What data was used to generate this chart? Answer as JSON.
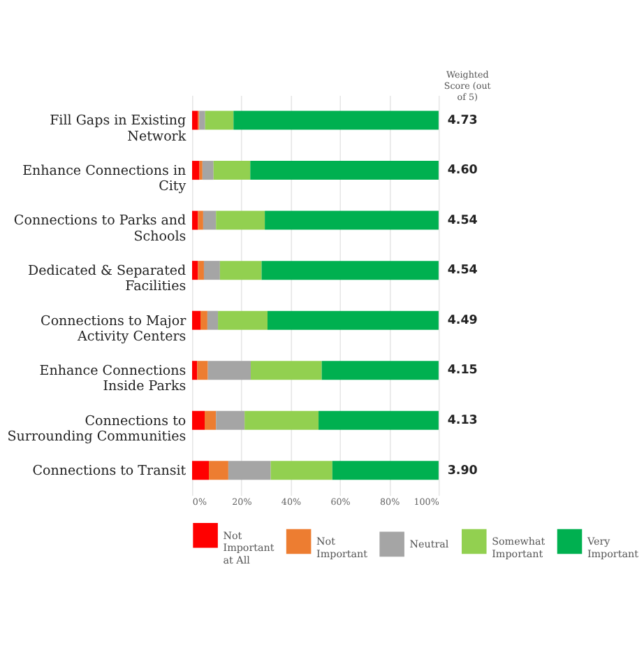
{
  "chart_data": {
    "type": "bar",
    "orientation": "horizontal",
    "stacked": true,
    "categories": [
      "Fill Gaps in Existing Network",
      "Enhance Connections in City",
      "Connections to Parks and Schools",
      "Dedicated & Separated Facilities",
      "Connections to Major Activity Centers",
      "Enhance Connections Inside Parks",
      "Connections to Surrounding Communities",
      "Connections to Transit"
    ],
    "series": [
      {
        "name": "Not Important at All",
        "color": "#ff0000",
        "values": [
          2.4,
          3.0,
          2.4,
          2.4,
          3.4,
          2.1,
          5.1,
          6.8
        ]
      },
      {
        "name": "Not Important",
        "color": "#ed7d31",
        "values": [
          0.5,
          1.2,
          2.1,
          2.4,
          2.8,
          4.3,
          4.6,
          7.9
        ]
      },
      {
        "name": "Neutral",
        "color": "#a5a5a5",
        "values": [
          2.4,
          4.5,
          5.2,
          6.5,
          4.3,
          17.4,
          11.6,
          17.2
        ]
      },
      {
        "name": "Somewhat Important",
        "color": "#92d050",
        "values": [
          11.5,
          14.9,
          19.8,
          16.9,
          20.1,
          28.8,
          30.0,
          25.0
        ]
      },
      {
        "name": "Very Important",
        "color": "#00b050",
        "values": [
          83.2,
          76.4,
          70.5,
          71.8,
          69.4,
          47.4,
          48.7,
          43.1
        ]
      }
    ],
    "xlim": [
      0,
      100
    ],
    "xticks": [
      {
        "value": 0,
        "label": "0%"
      },
      {
        "value": 20,
        "label": "20%"
      },
      {
        "value": 40,
        "label": "40%"
      },
      {
        "value": 60,
        "label": "60%"
      },
      {
        "value": 80,
        "label": "80%"
      },
      {
        "value": 100,
        "label": "100%"
      }
    ],
    "annotations": [
      "Weighted Score (out of 5)",
      "4.73",
      "4.60",
      "4.54",
      "4.54",
      "4.49",
      "4.15",
      "4.13",
      "3.90"
    ],
    "grid": "x",
    "legend": "bottom"
  }
}
